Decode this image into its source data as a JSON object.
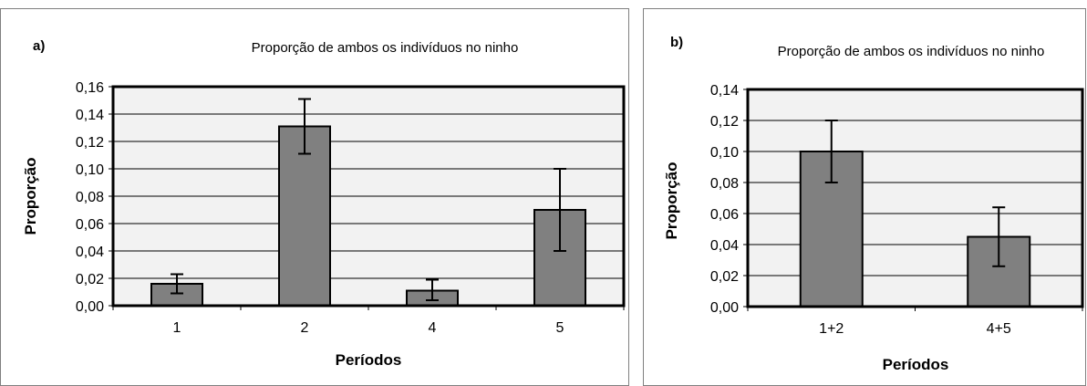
{
  "chart_data": [
    {
      "type": "bar",
      "panel_label": "a)",
      "title": "Proporção de ambos os indivíduos no ninho",
      "xlabel": "Períodos",
      "ylabel": "Proporção",
      "categories": [
        "1",
        "2",
        "4",
        "5"
      ],
      "values": [
        0.016,
        0.131,
        0.011,
        0.07
      ],
      "error_low": [
        0.009,
        0.111,
        0.004,
        0.04
      ],
      "error_high": [
        0.023,
        0.151,
        0.019,
        0.1
      ],
      "ylim": [
        0,
        0.16
      ],
      "yticks": [
        "0,00",
        "0,02",
        "0,04",
        "0,06",
        "0,08",
        "0,10",
        "0,12",
        "0,14",
        "0,16"
      ],
      "grid": true,
      "legend": "none",
      "colors": {
        "bar": "#808080",
        "plot_bg": "#f2f2f2",
        "grid": "#000000"
      }
    },
    {
      "type": "bar",
      "panel_label": "b)",
      "title": "Proporção de ambos os indivíduos no ninho",
      "xlabel": "Períodos",
      "ylabel": "Proporção",
      "categories": [
        "1+2",
        "4+5"
      ],
      "values": [
        0.1,
        0.045
      ],
      "error_low": [
        0.08,
        0.026
      ],
      "error_high": [
        0.12,
        0.064
      ],
      "ylim": [
        0,
        0.14
      ],
      "yticks": [
        "0,00",
        "0,02",
        "0,04",
        "0,06",
        "0,08",
        "0,10",
        "0,12",
        "0,14"
      ],
      "grid": true,
      "legend": "none",
      "colors": {
        "bar": "#808080",
        "plot_bg": "#f2f2f2",
        "grid": "#000000"
      }
    }
  ]
}
